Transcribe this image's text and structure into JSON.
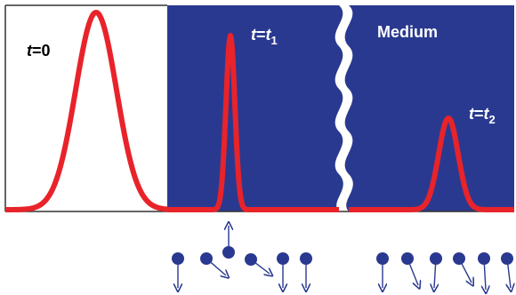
{
  "labels": {
    "pulse_t0": {
      "var": "t",
      "rest": "=0"
    },
    "pulse_t1": {
      "var": "t",
      "mid": "=",
      "var2": "t",
      "sub": "1"
    },
    "pulse_t2": {
      "var": "t",
      "mid": "=",
      "var2": "t",
      "sub": "2"
    },
    "medium": "Medium"
  },
  "colors": {
    "medium_fill": "#2a3990",
    "pulse": "#e8232a",
    "particle": "#2a3990",
    "arrow": "#2a3990",
    "frame": "#333333"
  }
}
